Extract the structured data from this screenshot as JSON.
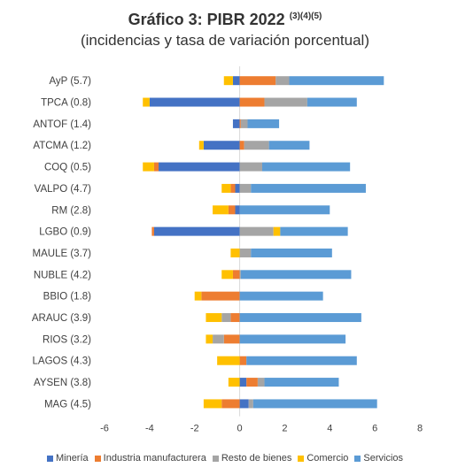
{
  "header": {
    "title": "Gráfico 3: PIBR 2022",
    "title_sup": "(3)(4)(5)",
    "subtitle": "(incidencias y tasa de variación porcentual)"
  },
  "chart_data": {
    "type": "bar",
    "orientation": "horizontal",
    "stacked": true,
    "title": "Gráfico 3: PIBR 2022 (3)(4)(5)",
    "subtitle": "(incidencias y tasa de variación porcentual)",
    "xlim": [
      -6,
      8
    ],
    "x_ticks": [
      "-6",
      "-4",
      "-2",
      "0",
      "2",
      "4",
      "6",
      "8"
    ],
    "grid": false,
    "legend_position": "bottom",
    "categories": [
      "AyP (5.7)",
      "TPCA (0.8)",
      "ANTOF (1.4)",
      "ATCMA (1.2)",
      "COQ (0.5)",
      "VALPO (4.7)",
      "RM (2.8)",
      "LGBO (0.9)",
      "MAULE (3.7)",
      "NUBLE (4.2)",
      "BBIO (1.8)",
      "ARAUC (3.9)",
      "RIOS (3.2)",
      "LAGOS (4.3)",
      "AYSEN (3.8)",
      "MAG (4.5)"
    ],
    "series": [
      {
        "name": "Minería",
        "color": "#4472c4",
        "values": [
          -0.3,
          -4.0,
          -0.3,
          -1.6,
          -3.6,
          -0.2,
          -0.2,
          -3.8,
          0.0,
          0.0,
          0.0,
          0.0,
          0.0,
          0.0,
          0.3,
          0.4
        ]
      },
      {
        "name": "Industria manufacturera",
        "color": "#ed7d31",
        "values": [
          1.6,
          1.1,
          0.05,
          0.2,
          -0.2,
          -0.2,
          -0.3,
          -0.1,
          0.0,
          -0.3,
          -1.7,
          -0.4,
          -0.7,
          0.3,
          0.5,
          -0.8
        ]
      },
      {
        "name": "Resto de bienes",
        "color": "#a5a5a5",
        "values": [
          0.6,
          1.9,
          0.3,
          1.1,
          1.0,
          0.5,
          0.0,
          1.5,
          0.5,
          0.05,
          0.0,
          -0.4,
          -0.5,
          0.0,
          0.3,
          0.2
        ]
      },
      {
        "name": "Comercio",
        "color": "#ffc000",
        "values": [
          -0.4,
          -0.3,
          0.0,
          -0.2,
          -0.5,
          -0.4,
          -0.7,
          0.3,
          -0.4,
          -0.5,
          -0.3,
          -0.7,
          -0.3,
          -1.0,
          -0.5,
          -0.8
        ]
      },
      {
        "name": "Servicios",
        "color": "#5b9bd5",
        "values": [
          4.2,
          2.2,
          1.4,
          1.8,
          3.9,
          5.1,
          4.0,
          3.0,
          3.6,
          4.9,
          3.7,
          5.4,
          4.7,
          4.9,
          3.3,
          5.5
        ]
      }
    ]
  }
}
